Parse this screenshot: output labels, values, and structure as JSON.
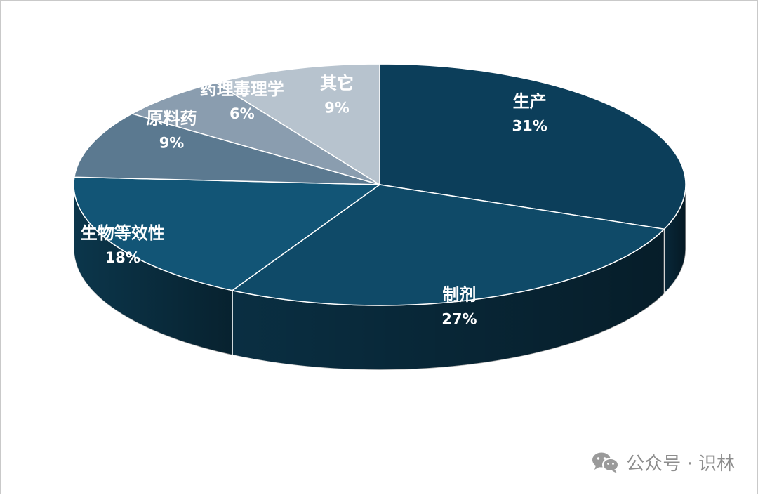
{
  "chart_data": {
    "type": "pie",
    "style": "3d",
    "slices": [
      {
        "label": "生产",
        "value": 31,
        "pct_text": "31%",
        "color": "#0c3e5a"
      },
      {
        "label": "制剂",
        "value": 27,
        "pct_text": "27%",
        "color": "#0f4a68"
      },
      {
        "label": "生物等效性",
        "value": 18,
        "pct_text": "18%",
        "color": "#125576"
      },
      {
        "label": "原料药",
        "value": 9,
        "pct_text": "9%",
        "color": "#5b7990"
      },
      {
        "label": "药理毒理学",
        "value": 6,
        "pct_text": "6%",
        "color": "#8a9daf"
      },
      {
        "label": "其它",
        "value": 9,
        "pct_text": "9%",
        "color": "#b7c3ce"
      }
    ]
  },
  "watermark": {
    "icon": "wechat-icon",
    "text": "公众号 · 识林"
  }
}
